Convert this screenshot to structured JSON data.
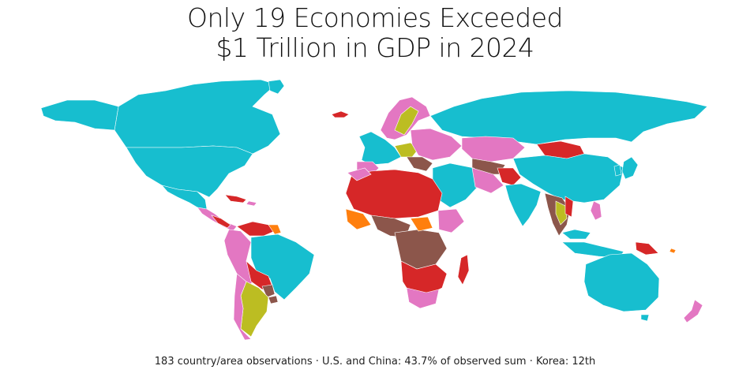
{
  "title": {
    "line1": "Only 19 Economies Exceeded",
    "line2": "$1 Trillion in GDP in 2024"
  },
  "footer": "183 country/area observations · U.S. and China: 43.7% of observed sum · Korea: 12th",
  "colors": {
    "cyan": "#17becf",
    "pink": "#e377c2",
    "red": "#d62728",
    "brown": "#8c564b",
    "olive": "#bcbd22",
    "orange": "#ff7f0e",
    "background": "#ffffff"
  }
}
